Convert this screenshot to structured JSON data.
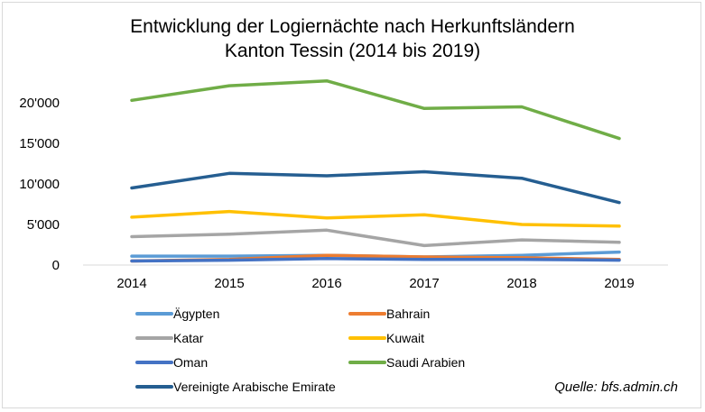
{
  "chart_data": {
    "type": "line",
    "title_line1": "Entwicklung der Logiernächte nach Herkunftsländern",
    "title_line2": "Kanton Tessin (2014 bis 2019)",
    "x": [
      "2014",
      "2015",
      "2016",
      "2017",
      "2018",
      "2019"
    ],
    "y_ticks": [
      "0",
      "5'000",
      "10'000",
      "15'000",
      "20'000"
    ],
    "ylim": [
      0,
      22000
    ],
    "grid": false,
    "legend_position": "bottom",
    "series": [
      {
        "name": "Ägypten",
        "color": "#5b9bd5",
        "values": [
          1100,
          1100,
          1200,
          1000,
          1200,
          1600
        ]
      },
      {
        "name": "Bahrain",
        "color": "#ed7d31",
        "values": [
          500,
          700,
          1200,
          1000,
          900,
          700
        ]
      },
      {
        "name": "Katar",
        "color": "#a5a5a5",
        "values": [
          3500,
          3800,
          4300,
          2400,
          3100,
          2800
        ]
      },
      {
        "name": "Kuwait",
        "color": "#ffc000",
        "values": [
          5900,
          6600,
          5800,
          6200,
          5000,
          4800
        ]
      },
      {
        "name": "Oman",
        "color": "#4472c4",
        "values": [
          500,
          600,
          800,
          700,
          700,
          600
        ]
      },
      {
        "name": "Saudi Arabien",
        "color": "#70ad47",
        "values": [
          20300,
          22100,
          22700,
          19300,
          19500,
          15600
        ]
      },
      {
        "name": "Vereinigte Arabische Emirate",
        "color": "#255e91",
        "values": [
          9500,
          11300,
          11000,
          11500,
          10700,
          7700
        ]
      }
    ]
  },
  "source": "Quelle: bfs.admin.ch"
}
